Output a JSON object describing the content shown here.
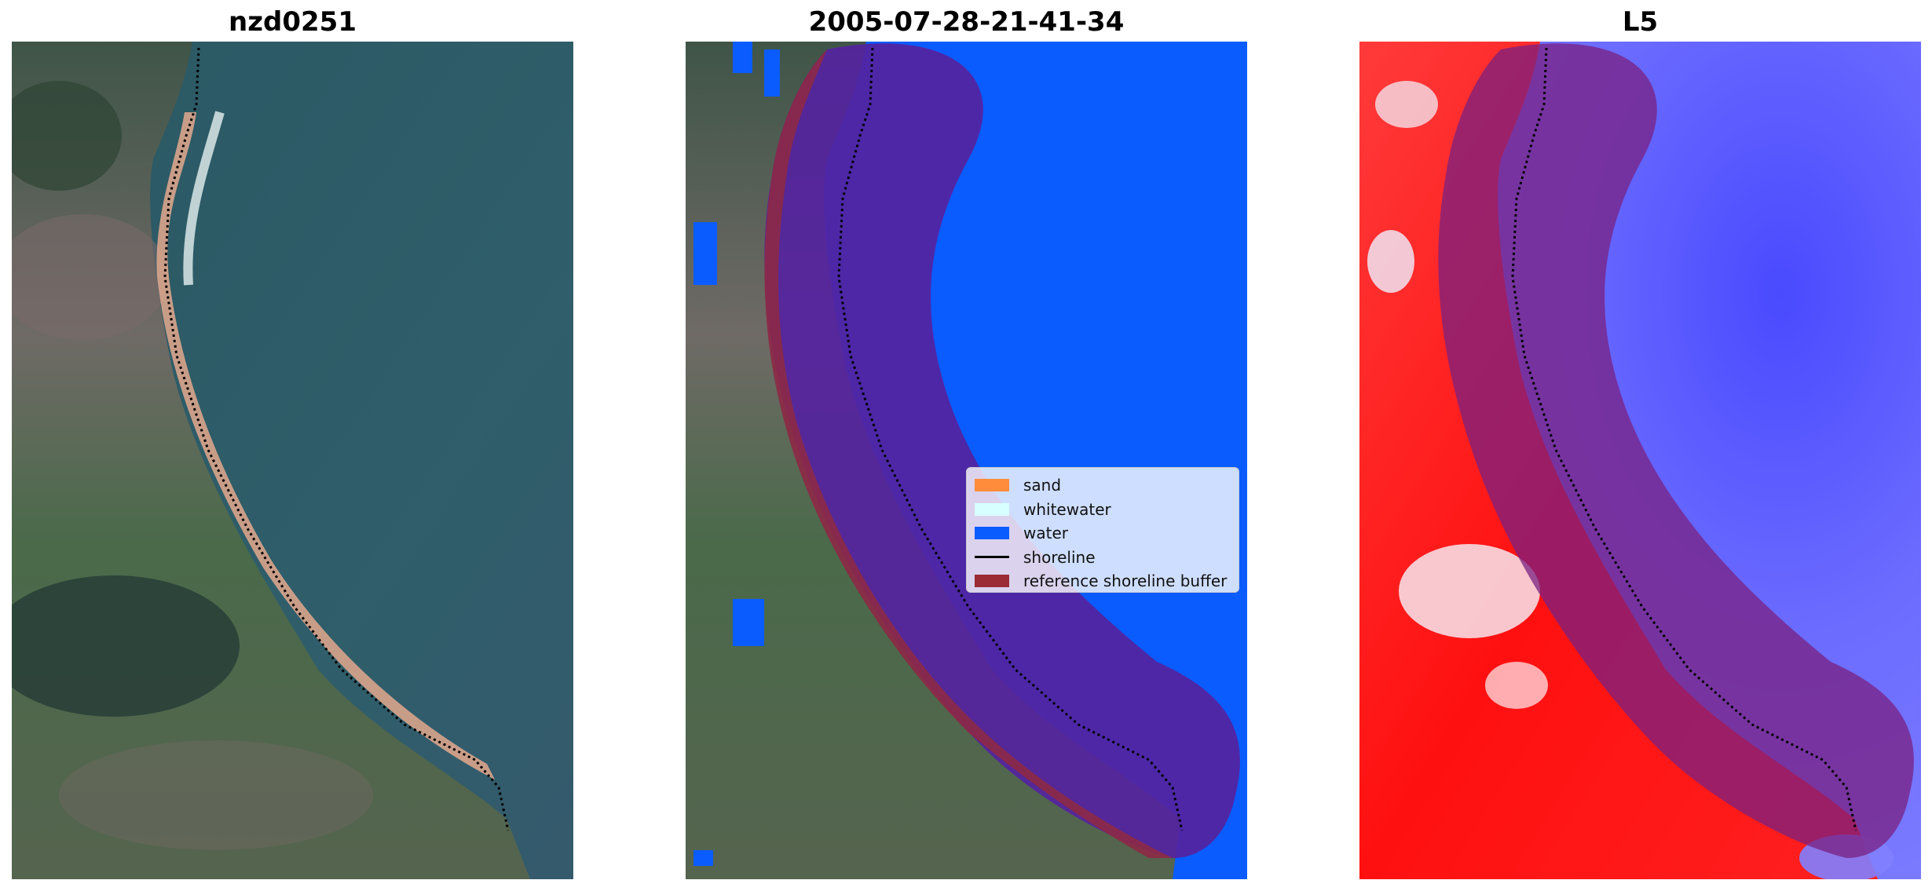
{
  "panels": [
    {
      "title": "nzd0251"
    },
    {
      "title": "2005-07-28-21-41-34"
    },
    {
      "title": "L5"
    }
  ],
  "legend": {
    "placement": "center-right of middle panel",
    "items": [
      {
        "label": "sand",
        "color": "#ff8c3a"
      },
      {
        "label": "whitewater",
        "color": "#d7ffff"
      },
      {
        "label": "water",
        "color": "#0a5cff"
      },
      {
        "label": "shoreline",
        "color": "#000000"
      },
      {
        "label": "reference shoreline buffer",
        "color": "#9b2b34"
      }
    ]
  },
  "colors": {
    "rgb_land": "#5e6f5a",
    "rgb_sea": "#2f5a68",
    "water_mask": "#0a5cff",
    "buffer_over_water": "#5523a0",
    "buffer_over_land": "#8d2946",
    "index_red": "#ff1a1a",
    "index_blue": "#5b5bff"
  }
}
